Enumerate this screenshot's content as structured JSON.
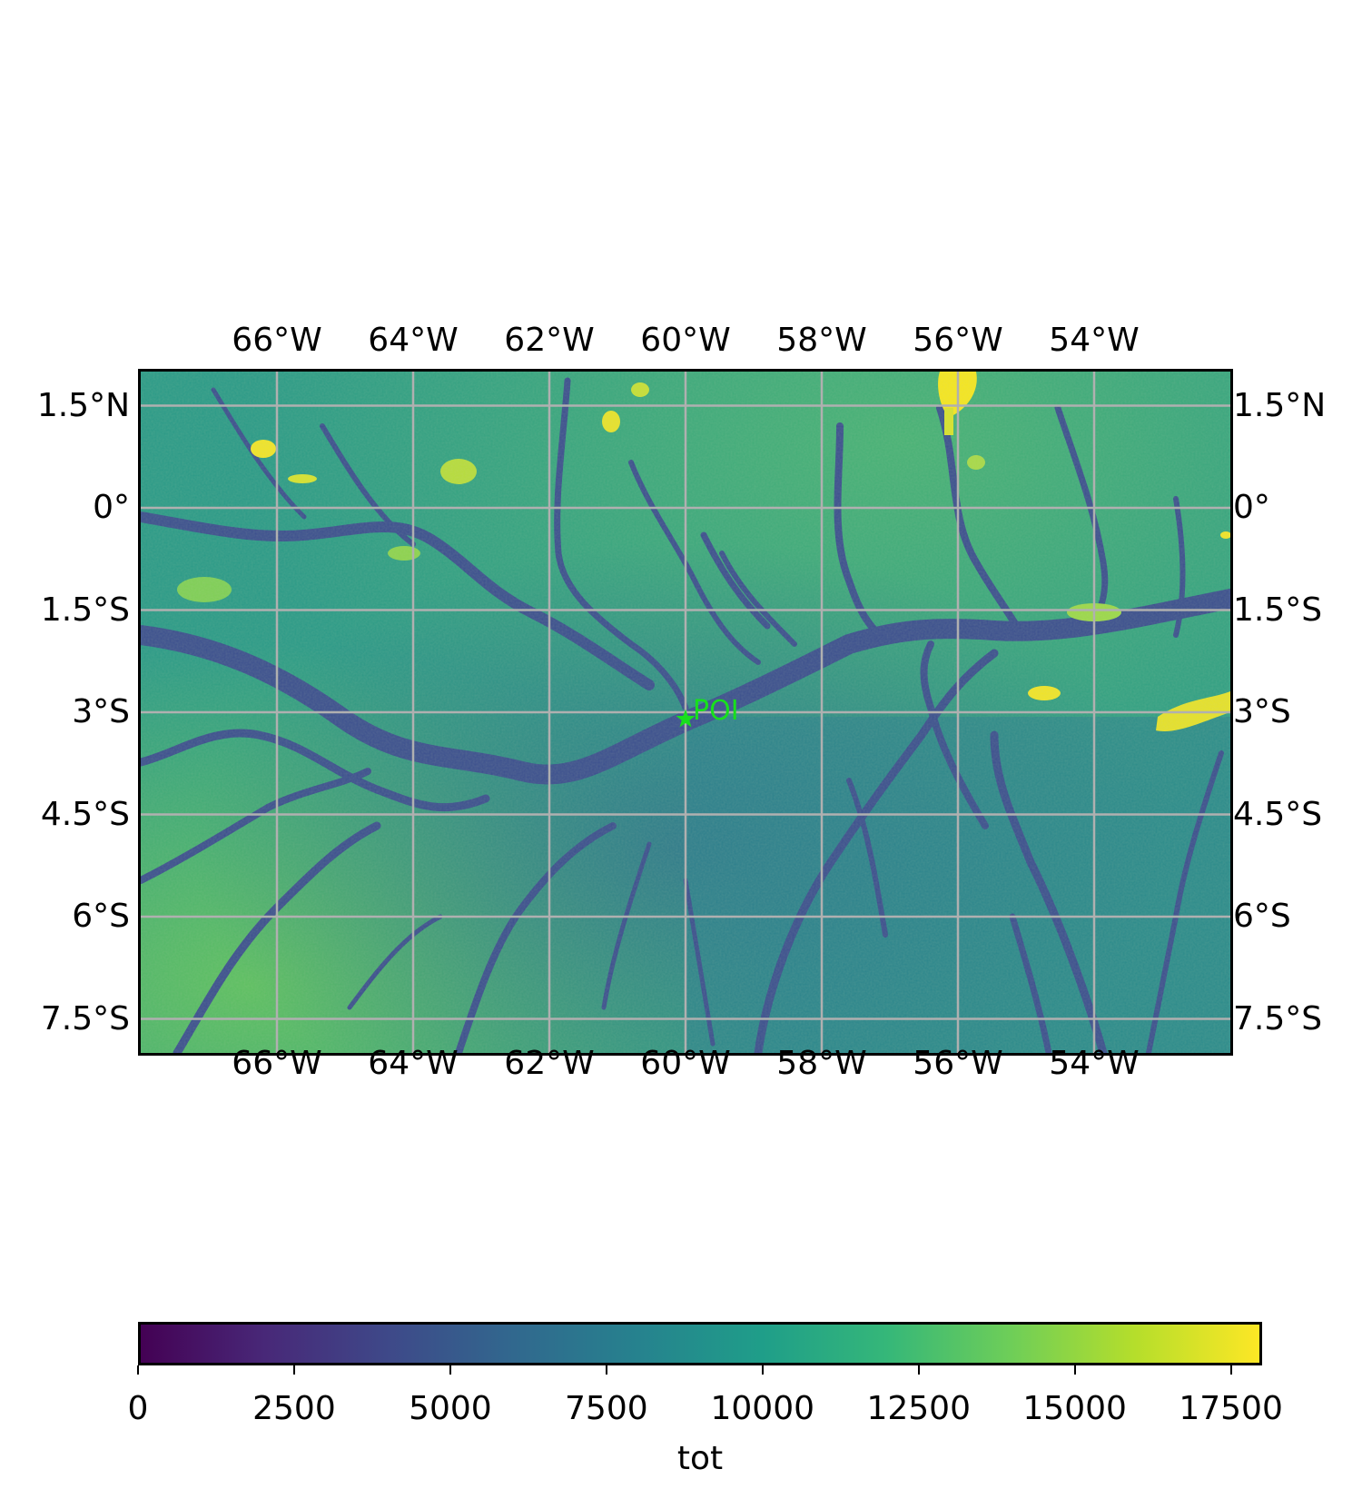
{
  "map": {
    "lon_range": [
      -68,
      -52
    ],
    "lat_range": [
      -8,
      2
    ],
    "lon_ticks": [
      {
        "value": -66,
        "label": "66°W"
      },
      {
        "value": -64,
        "label": "64°W"
      },
      {
        "value": -62,
        "label": "62°W"
      },
      {
        "value": -60,
        "label": "60°W"
      },
      {
        "value": -58,
        "label": "58°W"
      },
      {
        "value": -56,
        "label": "56°W"
      },
      {
        "value": -54,
        "label": "54°W"
      }
    ],
    "lat_ticks": [
      {
        "value": 1.5,
        "label": "1.5°N"
      },
      {
        "value": 0,
        "label": "0°"
      },
      {
        "value": -1.5,
        "label": "1.5°S"
      },
      {
        "value": -3,
        "label": "3°S"
      },
      {
        "value": -4.5,
        "label": "4.5°S"
      },
      {
        "value": -6,
        "label": "6°S"
      },
      {
        "value": -7.5,
        "label": "7.5°S"
      }
    ],
    "gridlines": true,
    "colormap": "viridis",
    "poi": {
      "label": "POI",
      "lon": -60.0,
      "lat": -3.1,
      "color": "#18e01c"
    }
  },
  "colorbar": {
    "label": "tot",
    "range": [
      0,
      18000
    ],
    "ticks": [
      {
        "value": 0,
        "label": "0"
      },
      {
        "value": 2500,
        "label": "2500"
      },
      {
        "value": 5000,
        "label": "5000"
      },
      {
        "value": 7500,
        "label": "7500"
      },
      {
        "value": 10000,
        "label": "10000"
      },
      {
        "value": 12500,
        "label": "12500"
      },
      {
        "value": 15000,
        "label": "15000"
      },
      {
        "value": 17500,
        "label": "17500"
      }
    ]
  }
}
